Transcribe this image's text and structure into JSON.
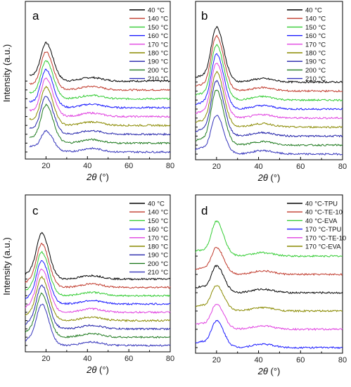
{
  "chart_data": [
    {
      "type": "line",
      "panel": "a",
      "xlabel": "2θ (°)",
      "ylabel": "Intensity (a.u.)",
      "xlim": [
        10,
        80
      ],
      "xticks": [
        20,
        40,
        60,
        80
      ],
      "legend_position": "top-right",
      "series": [
        {
          "name": "40 °C",
          "color": "#000000",
          "offset": 8,
          "peak": 1.0
        },
        {
          "name": "140 °C",
          "color": "#c0392b",
          "offset": 7,
          "peak": 1.0
        },
        {
          "name": "150 °C",
          "color": "#33cc33",
          "offset": 6,
          "peak": 1.0
        },
        {
          "name": "160 °C",
          "color": "#1a1aff",
          "offset": 5,
          "peak": 1.0
        },
        {
          "name": "170 °C",
          "color": "#e040e0",
          "offset": 4,
          "peak": 1.0
        },
        {
          "name": "180 °C",
          "color": "#8a8a00",
          "offset": 3,
          "peak": 1.0
        },
        {
          "name": "190 °C",
          "color": "#2222aa",
          "offset": 2,
          "peak": 1.0
        },
        {
          "name": "200 °C",
          "color": "#1f7a1f",
          "offset": 1,
          "peak": 1.0
        },
        {
          "name": "210 °C",
          "color": "#3333bb",
          "offset": 0,
          "peak": 0.55
        }
      ]
    },
    {
      "type": "line",
      "panel": "b",
      "xlabel": "2θ (°)",
      "ylabel": "",
      "xlim": [
        10,
        80
      ],
      "xticks": [
        20,
        40,
        60,
        80
      ],
      "legend_position": "top-right",
      "series": [
        {
          "name": "40 °C",
          "color": "#000000",
          "offset": 8,
          "peak": 1.0
        },
        {
          "name": "140 °C",
          "color": "#c0392b",
          "offset": 7,
          "peak": 1.0
        },
        {
          "name": "150 °C",
          "color": "#33cc33",
          "offset": 6,
          "peak": 1.0
        },
        {
          "name": "160 °C",
          "color": "#1a1aff",
          "offset": 5,
          "peak": 1.0
        },
        {
          "name": "170 °C",
          "color": "#e040e0",
          "offset": 4,
          "peak": 1.0
        },
        {
          "name": "180 °C",
          "color": "#8a8a00",
          "offset": 3,
          "peak": 1.0
        },
        {
          "name": "190 °C",
          "color": "#2222aa",
          "offset": 2,
          "peak": 1.0
        },
        {
          "name": "200 °C",
          "color": "#1f7a1f",
          "offset": 1,
          "peak": 1.0
        },
        {
          "name": "210 °C",
          "color": "#3333bb",
          "offset": 0,
          "peak": 0.7
        }
      ]
    },
    {
      "type": "line",
      "panel": "c",
      "xlabel": "2θ (°)",
      "ylabel": "Intensity (a.u.)",
      "xlim": [
        10,
        80
      ],
      "xticks": [
        20,
        40,
        60,
        80
      ],
      "legend_position": "top-right",
      "series": [
        {
          "name": "40 °C",
          "color": "#000000",
          "offset": 8,
          "peak": 1.0
        },
        {
          "name": "140 °C",
          "color": "#c0392b",
          "offset": 7,
          "peak": 0.95
        },
        {
          "name": "150 °C",
          "color": "#33cc33",
          "offset": 6,
          "peak": 0.95
        },
        {
          "name": "160 °C",
          "color": "#1a1aff",
          "offset": 5,
          "peak": 0.95
        },
        {
          "name": "170 °C",
          "color": "#e040e0",
          "offset": 4,
          "peak": 0.95
        },
        {
          "name": "180 °C",
          "color": "#8a8a00",
          "offset": 3,
          "peak": 0.95
        },
        {
          "name": "190 °C",
          "color": "#2222aa",
          "offset": 2,
          "peak": 0.95
        },
        {
          "name": "200 °C",
          "color": "#1f7a1f",
          "offset": 1,
          "peak": 0.95
        },
        {
          "name": "210 °C",
          "color": "#3333bb",
          "offset": 0,
          "peak": 0.9
        }
      ]
    },
    {
      "type": "line",
      "panel": "d",
      "xlabel": "2θ (°)",
      "ylabel": "",
      "xlim": [
        10,
        80
      ],
      "xticks": [
        20,
        40,
        60,
        80
      ],
      "legend_position": "top-right",
      "series": [
        {
          "name": "40 °C-TPU",
          "color": "#000000",
          "offset": 3,
          "peak": 1.0
        },
        {
          "name": "40 °C-TE-10",
          "color": "#c0392b",
          "offset": 4,
          "peak": 1.0
        },
        {
          "name": "40 °C-EVA",
          "color": "#33cc33",
          "offset": 5,
          "peak": 1.3
        },
        {
          "name": "170 °C-TPU",
          "color": "#1a1aff",
          "offset": 0,
          "peak": 1.0
        },
        {
          "name": "170 °C-TE-10",
          "color": "#e040e0",
          "offset": 1,
          "peak": 0.95
        },
        {
          "name": "170 °C-EVA",
          "color": "#8a8a00",
          "offset": 2,
          "peak": 0.95
        }
      ]
    }
  ]
}
